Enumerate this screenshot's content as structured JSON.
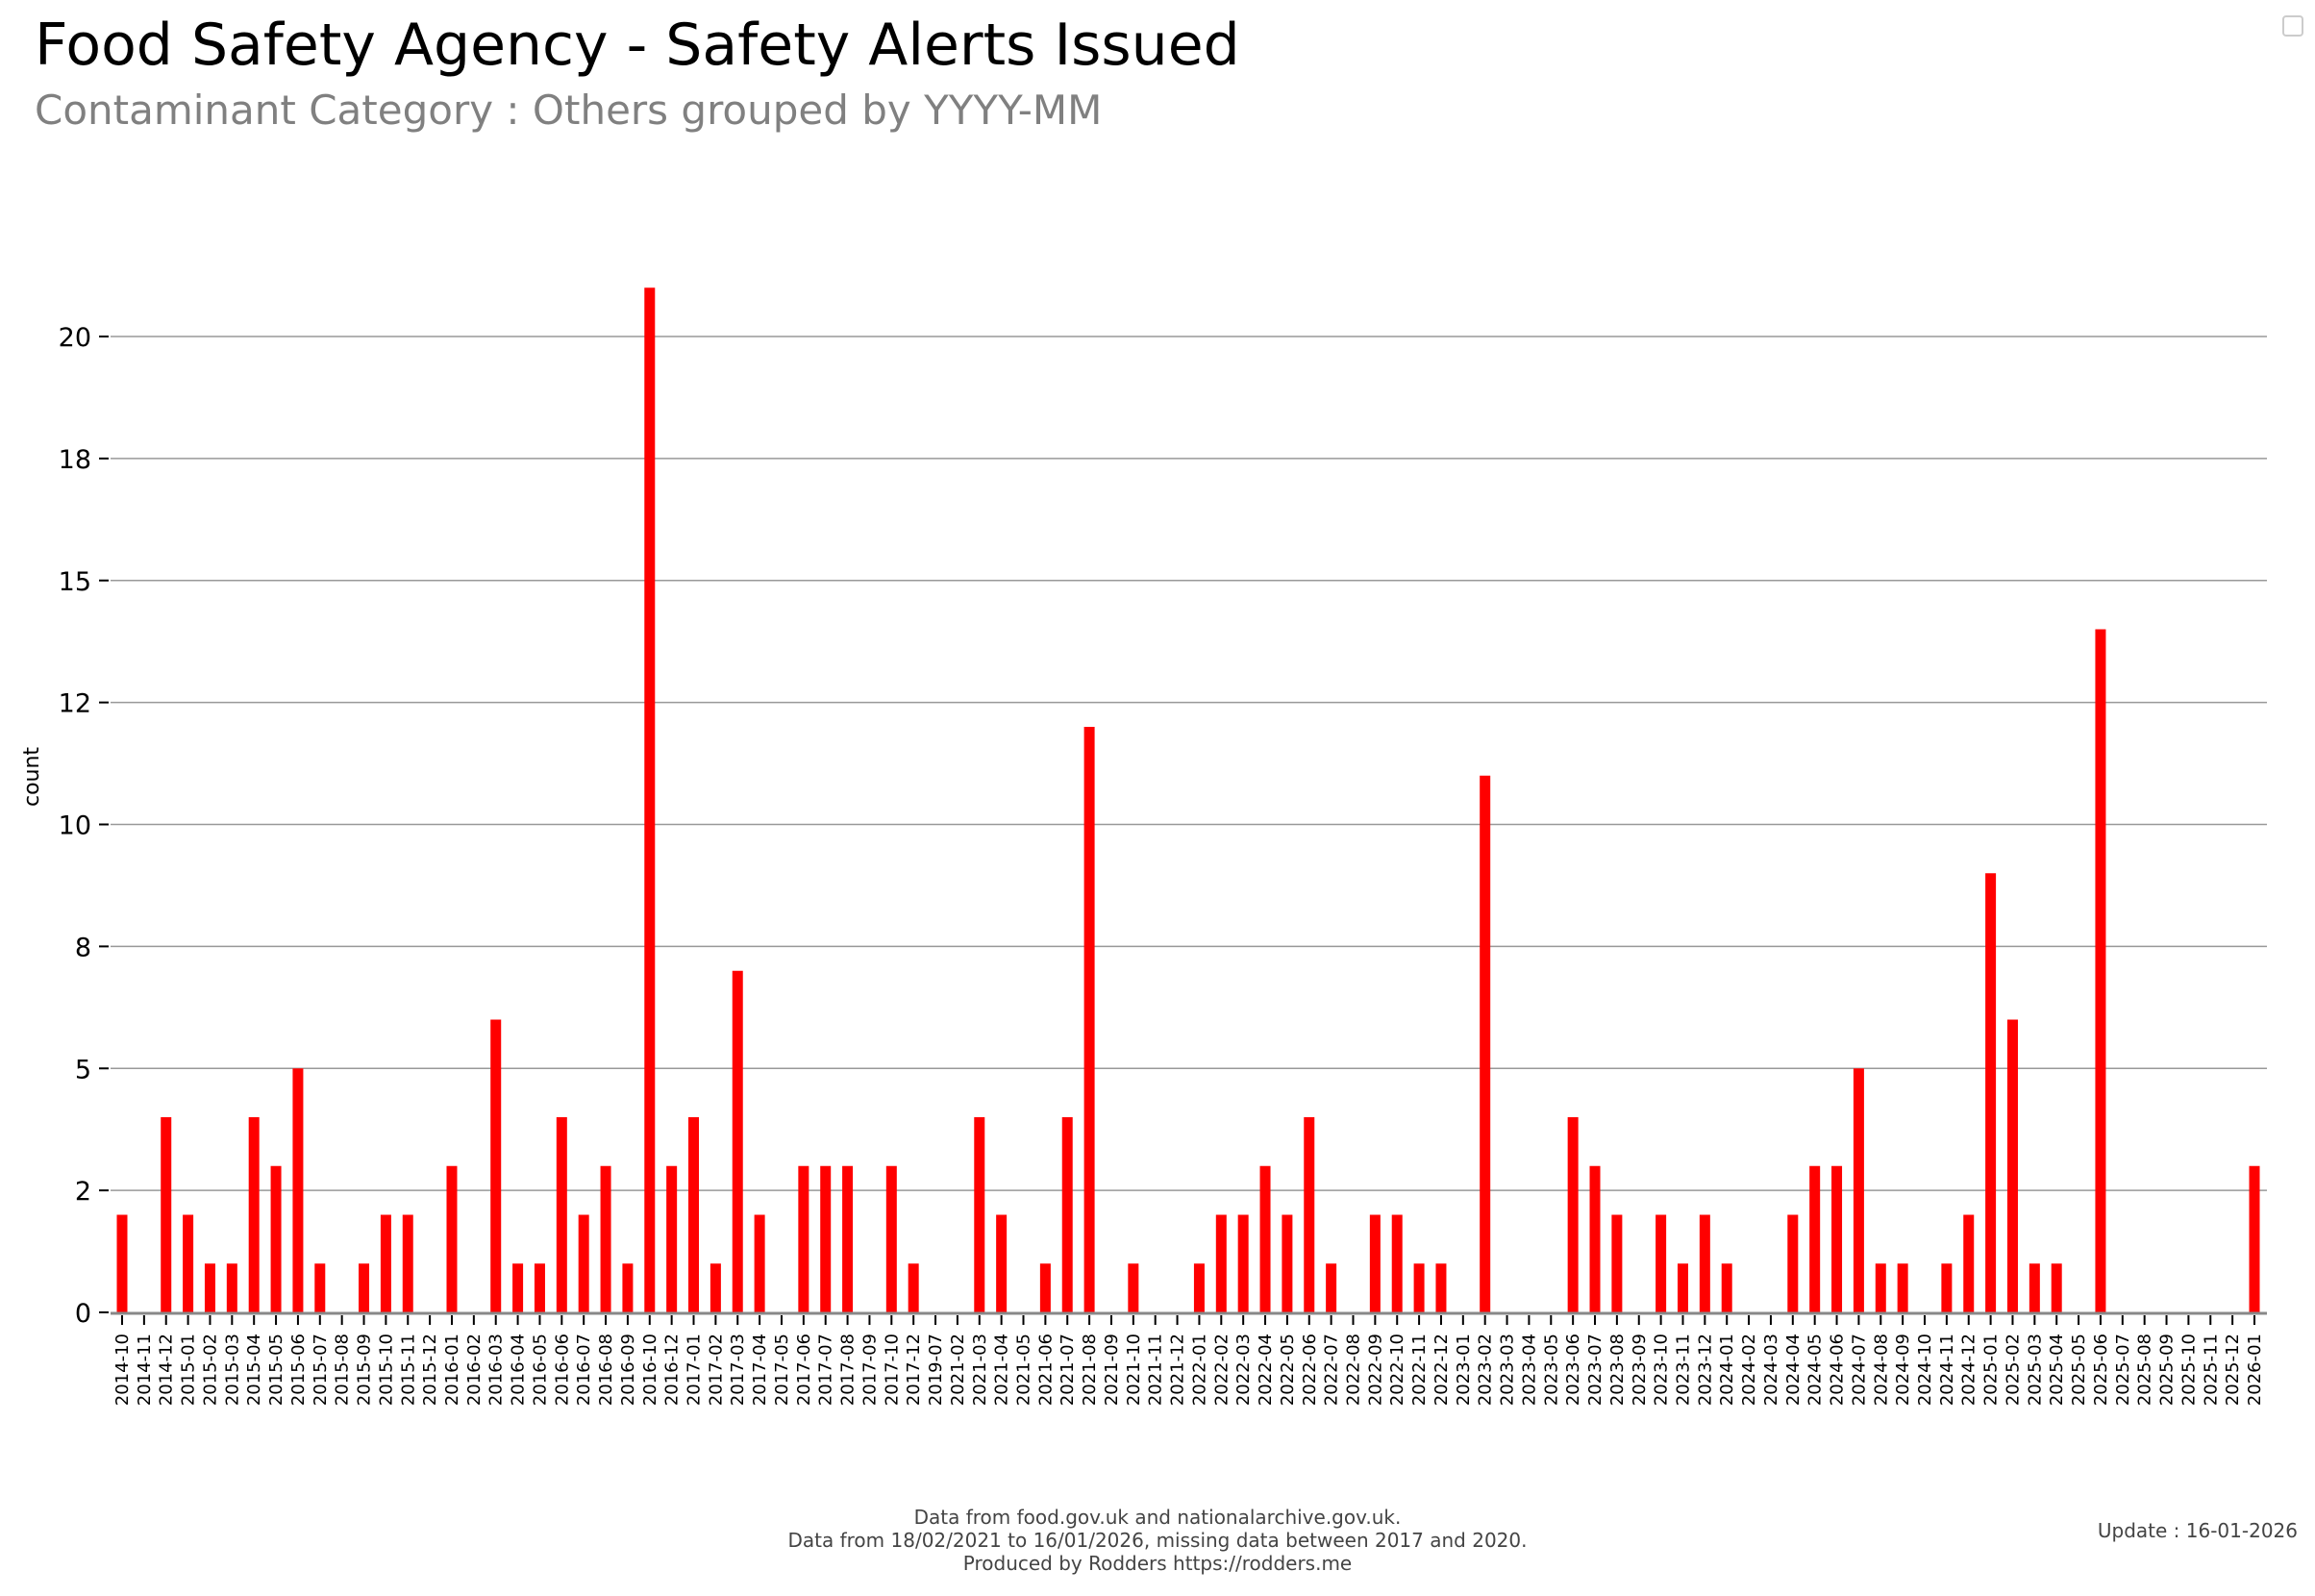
{
  "header": {
    "title": "Food Safety Agency - Safety Alerts Issued",
    "subtitle": "Contaminant Category : Others grouped by YYYY-MM"
  },
  "footer": {
    "lines": [
      "Data from food.gov.uk and nationalarchive.gov.uk.",
      "Data from 18/02/2021 to 16/01/2026, missing data between 2017 and 2020.",
      "Produced by Rodders https://rodders.me"
    ],
    "update": "Update : 16-01-2026"
  },
  "colors": {
    "bar": "#ff0000",
    "grid": "#999999",
    "axis": "#888888"
  },
  "chart_data": {
    "type": "bar",
    "title": "Food Safety Agency - Safety Alerts Issued",
    "subtitle": "Contaminant Category : Others grouped by YYYY-MM",
    "xlabel": "",
    "ylabel": "count",
    "ylim": [
      0,
      21
    ],
    "grid": true,
    "yticks": [
      0,
      2.5,
      5,
      7.5,
      10,
      12.5,
      15,
      17.5,
      20
    ],
    "ytick_labels": [
      "0",
      "2",
      "5",
      "8",
      "10",
      "12",
      "15",
      "18",
      "20"
    ],
    "categories": [
      "2014-10",
      "2014-11",
      "2014-12",
      "2015-01",
      "2015-02",
      "2015-03",
      "2015-04",
      "2015-05",
      "2015-06",
      "2015-07",
      "2015-08",
      "2015-09",
      "2015-10",
      "2015-11",
      "2015-12",
      "2016-01",
      "2016-02",
      "2016-03",
      "2016-04",
      "2016-05",
      "2016-06",
      "2016-07",
      "2016-08",
      "2016-09",
      "2016-10",
      "2016-12",
      "2017-01",
      "2017-02",
      "2017-03",
      "2017-04",
      "2017-05",
      "2017-06",
      "2017-07",
      "2017-08",
      "2017-09",
      "2017-10",
      "2017-12",
      "2019-07",
      "2021-02",
      "2021-03",
      "2021-04",
      "2021-05",
      "2021-06",
      "2021-07",
      "2021-08",
      "2021-09",
      "2021-10",
      "2021-11",
      "2021-12",
      "2022-01",
      "2022-02",
      "2022-03",
      "2022-04",
      "2022-05",
      "2022-06",
      "2022-07",
      "2022-08",
      "2022-09",
      "2022-10",
      "2022-11",
      "2022-12",
      "2023-01",
      "2023-02",
      "2023-03",
      "2023-04",
      "2023-05",
      "2023-06",
      "2023-07",
      "2023-08",
      "2023-09",
      "2023-10",
      "2023-11",
      "2023-12",
      "2024-01",
      "2024-02",
      "2024-03",
      "2024-04",
      "2024-05",
      "2024-06",
      "2024-07",
      "2024-08",
      "2024-09",
      "2024-10",
      "2024-11",
      "2024-12",
      "2025-01",
      "2025-02",
      "2025-03",
      "2025-04",
      "2025-05",
      "2025-06",
      "2025-07",
      "2025-08",
      "2025-09",
      "2025-10",
      "2025-11",
      "2025-12",
      "2026-01"
    ],
    "values": [
      2,
      0,
      4,
      2,
      1,
      1,
      4,
      3,
      5,
      1,
      0,
      1,
      2,
      2,
      0,
      3,
      0,
      6,
      1,
      1,
      4,
      2,
      3,
      1,
      21,
      3,
      4,
      1,
      7,
      2,
      0,
      3,
      3,
      3,
      0,
      3,
      1,
      0,
      0,
      4,
      2,
      0,
      1,
      4,
      12,
      0,
      1,
      0,
      0,
      1,
      2,
      2,
      3,
      2,
      4,
      1,
      0,
      2,
      2,
      1,
      1,
      0,
      11,
      0,
      0,
      0,
      4,
      3,
      2,
      0,
      2,
      1,
      2,
      1,
      0,
      0,
      2,
      3,
      3,
      5,
      1,
      1,
      0,
      1,
      2,
      9,
      6,
      1,
      1,
      0,
      14,
      0,
      0,
      0,
      0,
      0,
      0,
      3
    ]
  }
}
